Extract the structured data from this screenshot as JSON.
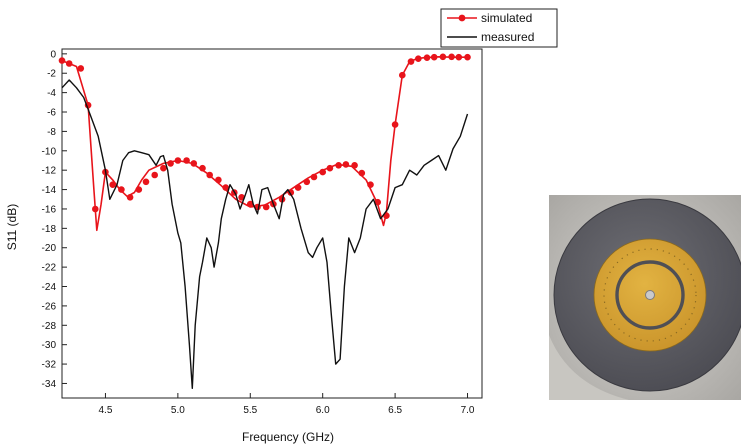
{
  "chart_data": {
    "type": "line",
    "title": "",
    "xlabel": "Frequency (GHz)",
    "ylabel": "S11 (dB)",
    "xlim": [
      4.2,
      7.1
    ],
    "ylim": [
      -35.5,
      0.5
    ],
    "xticks": [
      4.5,
      5.0,
      5.5,
      6.0,
      6.5,
      7.0
    ],
    "xtick_labels": [
      "4.5",
      "5.0",
      "5.5",
      "6.0",
      "6.5",
      "7.0"
    ],
    "yticks": [
      0,
      -2,
      -4,
      -6,
      -8,
      -10,
      -12,
      -14,
      -16,
      -18,
      -20,
      -22,
      -24,
      -26,
      -28,
      -30,
      -32,
      -34
    ],
    "ytick_labels": [
      "0",
      "-2",
      "-4",
      "-6",
      "-8",
      "-10",
      "-12",
      "-14",
      "-16",
      "-18",
      "-20",
      "-22",
      "-24",
      "-26",
      "-28",
      "-30",
      "-32",
      "-34"
    ],
    "grid": false,
    "legend_position": "top-right",
    "series": [
      {
        "name": "simulated",
        "color": "#e8141b",
        "marker": "circle",
        "x": [
          4.2,
          4.3,
          4.38,
          4.42,
          4.44,
          4.47,
          4.5,
          4.55,
          4.6,
          4.65,
          4.7,
          4.75,
          4.8,
          4.9,
          5.0,
          5.1,
          5.2,
          5.3,
          5.4,
          5.5,
          5.6,
          5.7,
          5.8,
          5.9,
          6.0,
          6.1,
          6.2,
          6.3,
          6.38,
          6.42,
          6.44,
          6.47,
          6.5,
          6.55,
          6.6,
          6.65,
          6.7,
          6.8,
          6.9,
          7.0
        ],
        "y": [
          -0.7,
          -1.3,
          -5.3,
          -14.0,
          -18.2,
          -15.5,
          -12.2,
          -13.0,
          -14.0,
          -14.7,
          -14.3,
          -13.0,
          -12.0,
          -11.3,
          -11.0,
          -11.3,
          -12.3,
          -13.6,
          -15.0,
          -15.8,
          -15.6,
          -14.8,
          -13.8,
          -12.8,
          -12.0,
          -11.4,
          -11.6,
          -13.0,
          -15.5,
          -17.7,
          -16.4,
          -11.0,
          -7.3,
          -2.2,
          -0.8,
          -0.5,
          -0.4,
          -0.3,
          -0.35,
          -0.35
        ],
        "marker_x": [
          4.2,
          4.25,
          4.33,
          4.38,
          4.43,
          4.5,
          4.55,
          4.61,
          4.67,
          4.73,
          4.78,
          4.84,
          4.9,
          4.95,
          5.0,
          5.06,
          5.11,
          5.17,
          5.22,
          5.28,
          5.33,
          5.39,
          5.44,
          5.5,
          5.55,
          5.61,
          5.66,
          5.72,
          5.78,
          5.83,
          5.89,
          5.94,
          6.0,
          6.05,
          6.11,
          6.16,
          6.22,
          6.27,
          6.33,
          6.38,
          6.44,
          6.5,
          6.55,
          6.61,
          6.66,
          6.72,
          6.77,
          6.83,
          6.89,
          6.94,
          7.0
        ],
        "marker_y": [
          -0.7,
          -1.0,
          -1.5,
          -5.3,
          -16.0,
          -12.2,
          -13.5,
          -14.0,
          -14.8,
          -14.0,
          -13.2,
          -12.5,
          -11.8,
          -11.3,
          -11.0,
          -11.0,
          -11.3,
          -11.8,
          -12.5,
          -13.0,
          -13.8,
          -14.3,
          -14.8,
          -15.5,
          -15.8,
          -15.8,
          -15.5,
          -15.0,
          -14.3,
          -13.8,
          -13.2,
          -12.7,
          -12.2,
          -11.8,
          -11.5,
          -11.4,
          -11.5,
          -12.3,
          -13.5,
          -15.3,
          -16.7,
          -7.3,
          -2.2,
          -0.8,
          -0.5,
          -0.4,
          -0.35,
          -0.3,
          -0.3,
          -0.35,
          -0.35
        ]
      },
      {
        "name": "measured",
        "color": "#111111",
        "marker": "none",
        "x": [
          4.2,
          4.25,
          4.3,
          4.35,
          4.4,
          4.45,
          4.5,
          4.53,
          4.58,
          4.62,
          4.66,
          4.7,
          4.75,
          4.8,
          4.85,
          4.88,
          4.9,
          4.93,
          4.96,
          5.0,
          5.02,
          5.05,
          5.08,
          5.1,
          5.12,
          5.15,
          5.17,
          5.2,
          5.23,
          5.25,
          5.28,
          5.3,
          5.33,
          5.36,
          5.4,
          5.43,
          5.46,
          5.49,
          5.52,
          5.55,
          5.58,
          5.62,
          5.66,
          5.7,
          5.73,
          5.76,
          5.8,
          5.85,
          5.9,
          5.93,
          5.96,
          6.0,
          6.03,
          6.06,
          6.09,
          6.12,
          6.15,
          6.18,
          6.22,
          6.26,
          6.3,
          6.35,
          6.4,
          6.45,
          6.5,
          6.55,
          6.6,
          6.65,
          6.7,
          6.75,
          6.8,
          6.85,
          6.9,
          6.95,
          7.0
        ],
        "y": [
          -3.5,
          -2.7,
          -3.5,
          -4.5,
          -6.5,
          -8.5,
          -12.0,
          -15.0,
          -13.5,
          -11.0,
          -10.2,
          -10.0,
          -10.2,
          -10.4,
          -11.5,
          -10.6,
          -10.5,
          -12.0,
          -15.5,
          -18.5,
          -19.5,
          -24.0,
          -30.0,
          -34.5,
          -28.0,
          -23.0,
          -21.5,
          -19.0,
          -20.0,
          -22.0,
          -19.5,
          -17.0,
          -15.0,
          -13.5,
          -14.5,
          -16.0,
          -14.8,
          -13.5,
          -15.5,
          -16.5,
          -14.0,
          -13.8,
          -15.5,
          -17.0,
          -14.5,
          -14.0,
          -15.0,
          -18.0,
          -20.5,
          -21.0,
          -20.0,
          -19.0,
          -21.5,
          -27.0,
          -32.0,
          -31.5,
          -24.0,
          -19.0,
          -20.5,
          -19.0,
          -16.0,
          -15.0,
          -17.0,
          -16.0,
          -13.8,
          -13.5,
          -12.0,
          -12.5,
          -11.5,
          -11.0,
          -10.5,
          -12.0,
          -9.8,
          -8.5,
          -6.2
        ]
      }
    ]
  }
}
